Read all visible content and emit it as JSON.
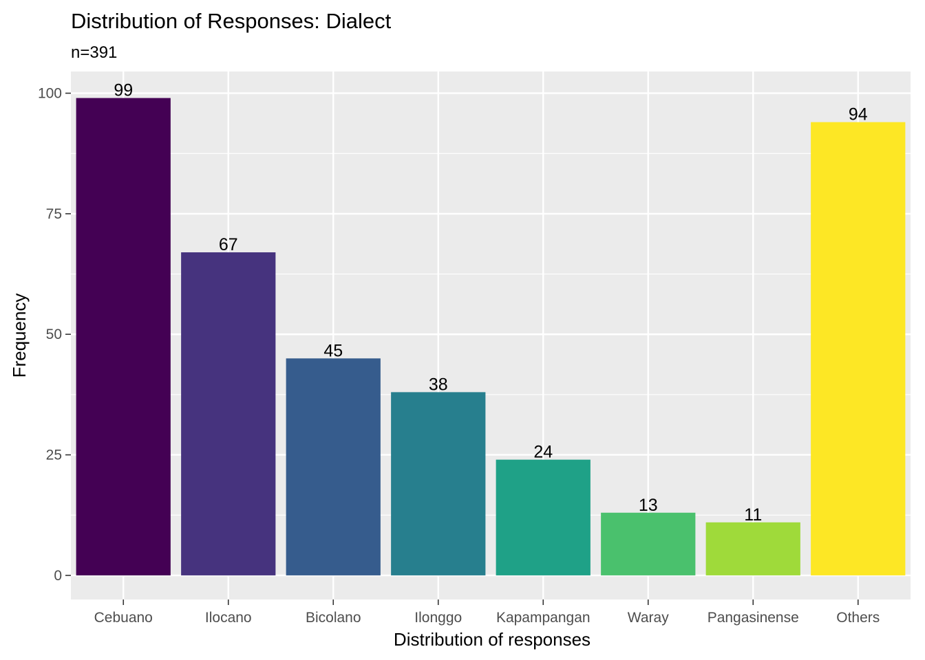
{
  "chart_data": {
    "type": "bar",
    "title": "Distribution of Responses: Dialect",
    "subtitle": "n=391",
    "xlabel": "Distribution of responses",
    "ylabel": "Frequency",
    "categories": [
      "Cebuano",
      "Ilocano",
      "Bicolano",
      "Ilonggo",
      "Kapampangan",
      "Waray",
      "Pangasinense",
      "Others"
    ],
    "values": [
      99,
      67,
      45,
      38,
      24,
      13,
      11,
      94
    ],
    "data_labels": [
      "99",
      "67",
      "45",
      "38",
      "24",
      "13",
      "11",
      "94"
    ],
    "colors": [
      "#440154",
      "#46337E",
      "#365C8D",
      "#277F8E",
      "#1FA187",
      "#4AC16D",
      "#9FDA3A",
      "#FDE725"
    ],
    "ylim": [
      -5,
      104.5
    ],
    "yticks": [
      0,
      25,
      50,
      75,
      100
    ],
    "ytick_labels": [
      "0",
      "25",
      "50",
      "75",
      "100"
    ],
    "panel_background": "#EBEBEB",
    "grid": true,
    "legend": "none"
  }
}
